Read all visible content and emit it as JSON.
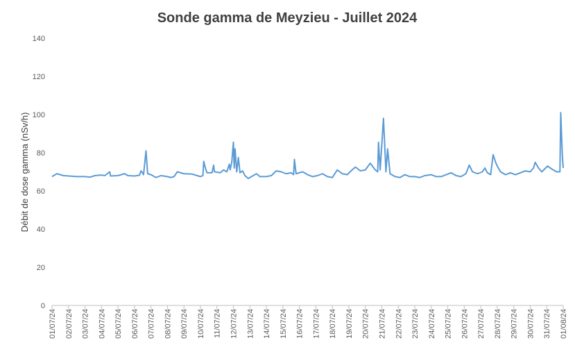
{
  "chart_data": {
    "type": "line",
    "title": "Sonde gamma de Meyzieu - Juillet 2024",
    "ylabel": "Débit de dose gamma (nSv/h)",
    "ylim": [
      0,
      140
    ],
    "yticks": [
      0,
      20,
      40,
      60,
      80,
      100,
      120,
      140
    ],
    "grid": false,
    "xlim": [
      0,
      31
    ],
    "xticks": [
      {
        "value": 0,
        "label": "01/07/24"
      },
      {
        "value": 1,
        "label": "02/07/24"
      },
      {
        "value": 2,
        "label": "03/07/24"
      },
      {
        "value": 3,
        "label": "04/07/24"
      },
      {
        "value": 4,
        "label": "05/07/24"
      },
      {
        "value": 5,
        "label": "06/07/24"
      },
      {
        "value": 6,
        "label": "07/07/24"
      },
      {
        "value": 7,
        "label": "08/07/24"
      },
      {
        "value": 8,
        "label": "09/07/24"
      },
      {
        "value": 9,
        "label": "10/07/24"
      },
      {
        "value": 10,
        "label": "11/07/24"
      },
      {
        "value": 11,
        "label": "12/07/24"
      },
      {
        "value": 12,
        "label": "13/07/24"
      },
      {
        "value": 13,
        "label": "14/07/24"
      },
      {
        "value": 14,
        "label": "15/07/24"
      },
      {
        "value": 15,
        "label": "16/07/24"
      },
      {
        "value": 16,
        "label": "17/07/24"
      },
      {
        "value": 17,
        "label": "18/07/24"
      },
      {
        "value": 18,
        "label": "19/07/24"
      },
      {
        "value": 19,
        "label": "20/07/24"
      },
      {
        "value": 20,
        "label": "21/07/24"
      },
      {
        "value": 21,
        "label": "22/07/24"
      },
      {
        "value": 22,
        "label": "23/07/24"
      },
      {
        "value": 23,
        "label": "24/07/24"
      },
      {
        "value": 24,
        "label": "25/07/24"
      },
      {
        "value": 25,
        "label": "26/07/24"
      },
      {
        "value": 26,
        "label": "27/07/24"
      },
      {
        "value": 27,
        "label": "28/07/24"
      },
      {
        "value": 28,
        "label": "29/07/24"
      },
      {
        "value": 29,
        "label": "30/07/24"
      },
      {
        "value": 30,
        "label": "31/07/24"
      },
      {
        "value": 31,
        "label": "01/08/24"
      }
    ],
    "x": [
      0,
      0.3,
      0.7,
      1,
      1.5,
      2,
      2.3,
      2.6,
      3,
      3.2,
      3.5,
      3.55,
      4,
      4.4,
      4.6,
      5,
      5.3,
      5.4,
      5.55,
      5.7,
      5.8,
      6,
      6.3,
      6.6,
      7,
      7.2,
      7.4,
      7.6,
      8,
      8.5,
      8.8,
      9.0,
      9.15,
      9.2,
      9.3,
      9.4,
      9.7,
      9.8,
      9.85,
      10.2,
      10.4,
      10.6,
      10.75,
      10.8,
      10.9,
      11.0,
      11.05,
      11.1,
      11.2,
      11.3,
      11.4,
      11.55,
      11.7,
      11.9,
      12.2,
      12.4,
      12.6,
      13,
      13.3,
      13.6,
      13.9,
      14.2,
      14.5,
      14.65,
      14.7,
      14.8,
      15.2,
      15.5,
      15.8,
      16.1,
      16.4,
      16.7,
      17,
      17.3,
      17.6,
      17.9,
      18.2,
      18.4,
      18.7,
      19,
      19.3,
      19.6,
      19.75,
      19.8,
      19.9,
      20.1,
      20.25,
      20.35,
      20.5,
      20.8,
      21.1,
      21.4,
      21.7,
      22,
      22.3,
      22.6,
      23,
      23.3,
      23.6,
      23.9,
      24.2,
      24.5,
      24.8,
      25.1,
      25.3,
      25.5,
      25.8,
      26.1,
      26.25,
      26.4,
      26.6,
      26.75,
      26.9,
      27.0,
      27.2,
      27.5,
      27.8,
      28.1,
      28.4,
      28.7,
      29.0,
      29.2,
      29.3,
      29.5,
      29.7,
      30.05,
      30.3,
      30.6,
      30.8,
      30.85,
      30.95,
      31
    ],
    "series": [
      {
        "name": "Débit de dose",
        "color": "#5b9bd5",
        "values": [
          67.5,
          69,
          68,
          67.8,
          67.5,
          67.5,
          67.2,
          68,
          68.3,
          68,
          70,
          67.8,
          68,
          69,
          68,
          67.8,
          68.2,
          70.5,
          68.5,
          81,
          69,
          68.5,
          67,
          68,
          67.5,
          67,
          67.5,
          70,
          69,
          68.8,
          68,
          67.5,
          68,
          75.5,
          72,
          69.5,
          69.5,
          73.5,
          70,
          69.5,
          71,
          70,
          74,
          71,
          75,
          85.5,
          72,
          82,
          70,
          77.5,
          69.5,
          70.5,
          68,
          66.5,
          68,
          69,
          67.5,
          67.5,
          68,
          70.5,
          70,
          69,
          69.5,
          68.5,
          76.5,
          69,
          70,
          68.5,
          67.5,
          68,
          69,
          67.5,
          67,
          71,
          69,
          68.5,
          71,
          72.5,
          70.5,
          71,
          74.5,
          71,
          70,
          85.5,
          71,
          98,
          70,
          82,
          69,
          67.5,
          67,
          68.5,
          67.5,
          67.5,
          67,
          68,
          68.5,
          67.5,
          67.5,
          68.5,
          69.5,
          68,
          67.5,
          69,
          73.5,
          70,
          69,
          70,
          72,
          69.5,
          68.5,
          79,
          75,
          73,
          70,
          68.5,
          69.5,
          68.5,
          69.5,
          70.5,
          70,
          72,
          75,
          72,
          70,
          73,
          71.5,
          70,
          70,
          101,
          78,
          72
        ]
      }
    ]
  }
}
